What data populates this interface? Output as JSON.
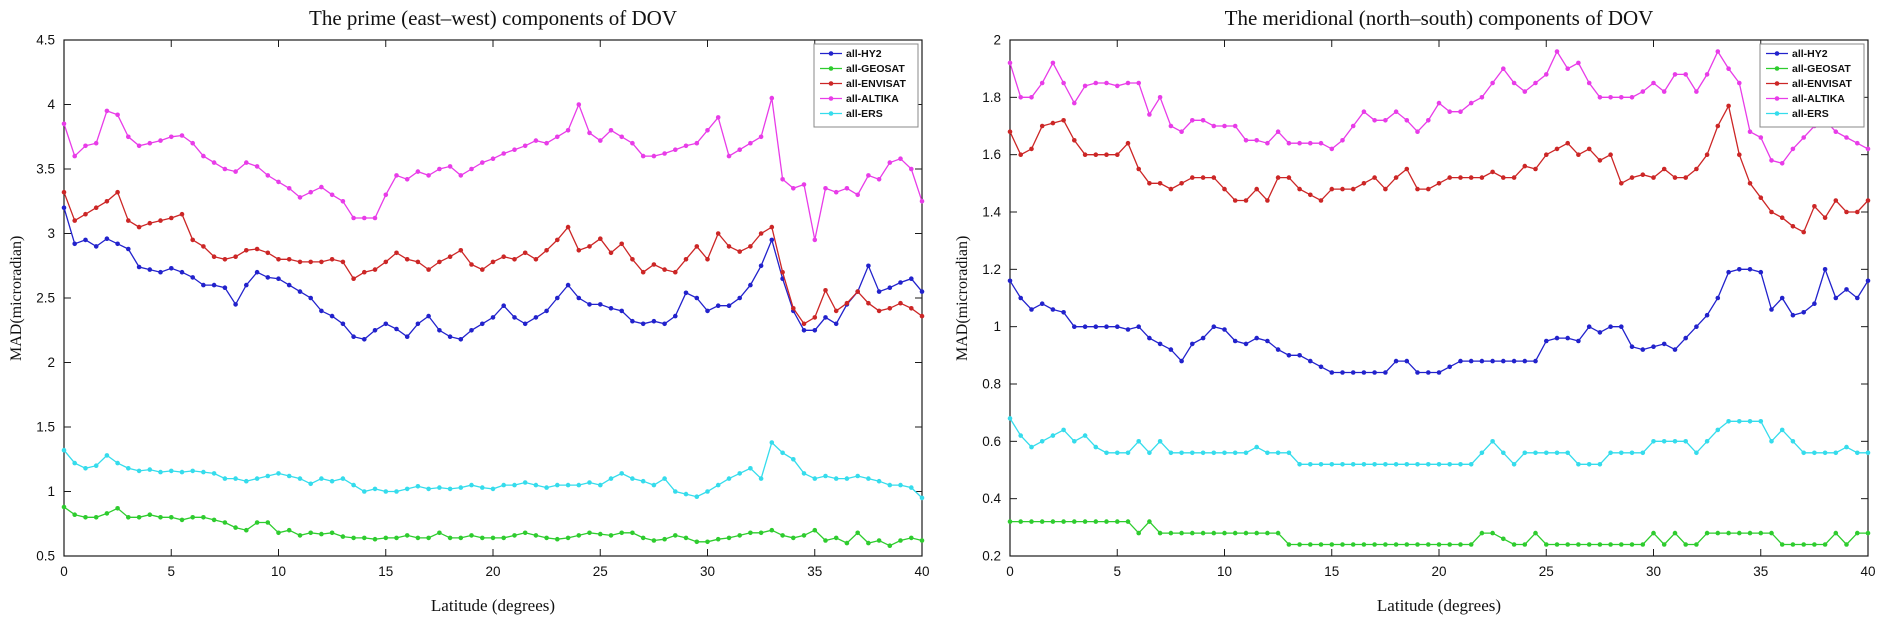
{
  "page": {
    "background": "#ffffff"
  },
  "chart_data": [
    {
      "type": "line",
      "title": "The prime (east–west) components of DOV",
      "xlabel": "Latitude (degrees)",
      "ylabel": "MAD(microradian)",
      "xlim": [
        0,
        40
      ],
      "ylim": [
        0.5,
        4.5
      ],
      "xticks": [
        0,
        5,
        10,
        15,
        20,
        25,
        30,
        35,
        40
      ],
      "yticks": [
        0.5,
        1,
        1.5,
        2,
        2.5,
        3,
        3.5,
        4,
        4.5
      ],
      "x_start": 0,
      "x_step": 0.5,
      "grid": false,
      "legend_position": "top-right",
      "series": [
        {
          "name": "all-HY2",
          "color": "#2222cc",
          "values": [
            3.2,
            2.92,
            2.95,
            2.9,
            2.96,
            2.92,
            2.88,
            2.74,
            2.72,
            2.7,
            2.73,
            2.7,
            2.66,
            2.6,
            2.6,
            2.58,
            2.45,
            2.6,
            2.7,
            2.66,
            2.65,
            2.6,
            2.55,
            2.5,
            2.4,
            2.36,
            2.3,
            2.2,
            2.18,
            2.25,
            2.3,
            2.26,
            2.2,
            2.3,
            2.36,
            2.25,
            2.2,
            2.18,
            2.25,
            2.3,
            2.35,
            2.44,
            2.35,
            2.3,
            2.35,
            2.4,
            2.5,
            2.6,
            2.5,
            2.45,
            2.45,
            2.42,
            2.4,
            2.32,
            2.3,
            2.32,
            2.3,
            2.36,
            2.54,
            2.5,
            2.4,
            2.44,
            2.44,
            2.5,
            2.6,
            2.75,
            2.95,
            2.65,
            2.4,
            2.25,
            2.25,
            2.35,
            2.3,
            2.45,
            2.55,
            2.75,
            2.55,
            2.58,
            2.62,
            2.65,
            2.55
          ]
        },
        {
          "name": "all-GEOSAT",
          "color": "#2ecc2e",
          "values": [
            0.88,
            0.82,
            0.8,
            0.8,
            0.83,
            0.87,
            0.8,
            0.8,
            0.82,
            0.8,
            0.8,
            0.78,
            0.8,
            0.8,
            0.78,
            0.76,
            0.72,
            0.7,
            0.76,
            0.76,
            0.68,
            0.7,
            0.66,
            0.68,
            0.67,
            0.68,
            0.65,
            0.64,
            0.64,
            0.63,
            0.64,
            0.64,
            0.66,
            0.64,
            0.64,
            0.68,
            0.64,
            0.64,
            0.66,
            0.64,
            0.64,
            0.64,
            0.66,
            0.68,
            0.66,
            0.64,
            0.63,
            0.64,
            0.66,
            0.68,
            0.67,
            0.66,
            0.68,
            0.68,
            0.64,
            0.62,
            0.63,
            0.66,
            0.64,
            0.61,
            0.61,
            0.63,
            0.64,
            0.66,
            0.68,
            0.68,
            0.7,
            0.66,
            0.64,
            0.66,
            0.7,
            0.62,
            0.64,
            0.6,
            0.68,
            0.6,
            0.62,
            0.58,
            0.62,
            0.64,
            0.62
          ]
        },
        {
          "name": "all-ENVISAT",
          "color": "#cc2626",
          "values": [
            3.32,
            3.1,
            3.15,
            3.2,
            3.25,
            3.32,
            3.1,
            3.05,
            3.08,
            3.1,
            3.12,
            3.15,
            2.95,
            2.9,
            2.82,
            2.8,
            2.82,
            2.87,
            2.88,
            2.85,
            2.8,
            2.8,
            2.78,
            2.78,
            2.78,
            2.8,
            2.78,
            2.65,
            2.7,
            2.72,
            2.78,
            2.85,
            2.8,
            2.78,
            2.72,
            2.78,
            2.82,
            2.87,
            2.76,
            2.72,
            2.78,
            2.82,
            2.8,
            2.85,
            2.8,
            2.87,
            2.95,
            3.05,
            2.87,
            2.9,
            2.96,
            2.85,
            2.92,
            2.8,
            2.7,
            2.76,
            2.72,
            2.7,
            2.8,
            2.9,
            2.8,
            3.0,
            2.9,
            2.86,
            2.9,
            3.0,
            3.05,
            2.7,
            2.42,
            2.3,
            2.35,
            2.56,
            2.4,
            2.46,
            2.55,
            2.46,
            2.4,
            2.42,
            2.46,
            2.42,
            2.36
          ]
        },
        {
          "name": "all-ALTIKA",
          "color": "#e83ce8",
          "values": [
            3.85,
            3.6,
            3.68,
            3.7,
            3.95,
            3.92,
            3.75,
            3.68,
            3.7,
            3.72,
            3.75,
            3.76,
            3.7,
            3.6,
            3.55,
            3.5,
            3.48,
            3.55,
            3.52,
            3.45,
            3.4,
            3.35,
            3.28,
            3.32,
            3.36,
            3.3,
            3.25,
            3.12,
            3.12,
            3.12,
            3.3,
            3.45,
            3.42,
            3.48,
            3.45,
            3.5,
            3.52,
            3.45,
            3.5,
            3.55,
            3.58,
            3.62,
            3.65,
            3.68,
            3.72,
            3.7,
            3.75,
            3.8,
            4.0,
            3.78,
            3.72,
            3.8,
            3.75,
            3.7,
            3.6,
            3.6,
            3.62,
            3.65,
            3.68,
            3.7,
            3.8,
            3.9,
            3.6,
            3.65,
            3.7,
            3.75,
            4.05,
            3.42,
            3.35,
            3.38,
            2.95,
            3.35,
            3.32,
            3.35,
            3.3,
            3.45,
            3.42,
            3.55,
            3.58,
            3.5,
            3.25
          ]
        },
        {
          "name": "all-ERS",
          "color": "#35dcec",
          "values": [
            1.32,
            1.22,
            1.18,
            1.2,
            1.28,
            1.22,
            1.18,
            1.16,
            1.17,
            1.15,
            1.16,
            1.15,
            1.16,
            1.15,
            1.14,
            1.1,
            1.1,
            1.08,
            1.1,
            1.12,
            1.14,
            1.12,
            1.1,
            1.06,
            1.1,
            1.08,
            1.1,
            1.05,
            1.0,
            1.02,
            1.0,
            1.0,
            1.02,
            1.04,
            1.02,
            1.03,
            1.02,
            1.03,
            1.05,
            1.03,
            1.02,
            1.05,
            1.05,
            1.07,
            1.05,
            1.03,
            1.05,
            1.05,
            1.05,
            1.07,
            1.05,
            1.1,
            1.14,
            1.1,
            1.08,
            1.05,
            1.1,
            1.0,
            0.98,
            0.96,
            1.0,
            1.05,
            1.1,
            1.14,
            1.18,
            1.1,
            1.38,
            1.3,
            1.25,
            1.14,
            1.1,
            1.12,
            1.1,
            1.1,
            1.12,
            1.1,
            1.08,
            1.05,
            1.05,
            1.03,
            0.95
          ]
        }
      ]
    },
    {
      "type": "line",
      "title": "The meridional (north–south) components of DOV",
      "xlabel": "Latitude (degrees)",
      "ylabel": "MAD(microradian)",
      "xlim": [
        0,
        40
      ],
      "ylim": [
        0.2,
        2
      ],
      "xticks": [
        0,
        5,
        10,
        15,
        20,
        25,
        30,
        35,
        40
      ],
      "yticks": [
        0.2,
        0.4,
        0.6,
        0.8,
        1,
        1.2,
        1.4,
        1.6,
        1.8,
        2
      ],
      "x_start": 0,
      "x_step": 0.5,
      "grid": false,
      "legend_position": "top-right",
      "series": [
        {
          "name": "all-HY2",
          "color": "#2222cc",
          "values": [
            1.16,
            1.1,
            1.06,
            1.08,
            1.06,
            1.05,
            1.0,
            1.0,
            1.0,
            1.0,
            1.0,
            0.99,
            1.0,
            0.96,
            0.94,
            0.92,
            0.88,
            0.94,
            0.96,
            1.0,
            0.99,
            0.95,
            0.94,
            0.96,
            0.95,
            0.92,
            0.9,
            0.9,
            0.88,
            0.86,
            0.84,
            0.84,
            0.84,
            0.84,
            0.84,
            0.84,
            0.88,
            0.88,
            0.84,
            0.84,
            0.84,
            0.86,
            0.88,
            0.88,
            0.88,
            0.88,
            0.88,
            0.88,
            0.88,
            0.88,
            0.95,
            0.96,
            0.96,
            0.95,
            1.0,
            0.98,
            1.0,
            1.0,
            0.93,
            0.92,
            0.93,
            0.94,
            0.92,
            0.96,
            1.0,
            1.04,
            1.1,
            1.19,
            1.2,
            1.2,
            1.19,
            1.06,
            1.1,
            1.04,
            1.05,
            1.08,
            1.2,
            1.1,
            1.13,
            1.1,
            1.16
          ]
        },
        {
          "name": "all-GEOSAT",
          "color": "#2ecc2e",
          "values": [
            0.32,
            0.32,
            0.32,
            0.32,
            0.32,
            0.32,
            0.32,
            0.32,
            0.32,
            0.32,
            0.32,
            0.32,
            0.28,
            0.32,
            0.28,
            0.28,
            0.28,
            0.28,
            0.28,
            0.28,
            0.28,
            0.28,
            0.28,
            0.28,
            0.28,
            0.28,
            0.24,
            0.24,
            0.24,
            0.24,
            0.24,
            0.24,
            0.24,
            0.24,
            0.24,
            0.24,
            0.24,
            0.24,
            0.24,
            0.24,
            0.24,
            0.24,
            0.24,
            0.24,
            0.28,
            0.28,
            0.26,
            0.24,
            0.24,
            0.28,
            0.24,
            0.24,
            0.24,
            0.24,
            0.24,
            0.24,
            0.24,
            0.24,
            0.24,
            0.24,
            0.28,
            0.24,
            0.28,
            0.24,
            0.24,
            0.28,
            0.28,
            0.28,
            0.28,
            0.28,
            0.28,
            0.28,
            0.24,
            0.24,
            0.24,
            0.24,
            0.24,
            0.28,
            0.24,
            0.28,
            0.28
          ]
        },
        {
          "name": "all-ENVISAT",
          "color": "#cc2626",
          "values": [
            1.68,
            1.6,
            1.62,
            1.7,
            1.71,
            1.72,
            1.65,
            1.6,
            1.6,
            1.6,
            1.6,
            1.64,
            1.55,
            1.5,
            1.5,
            1.48,
            1.5,
            1.52,
            1.52,
            1.52,
            1.48,
            1.44,
            1.44,
            1.48,
            1.44,
            1.52,
            1.52,
            1.48,
            1.46,
            1.44,
            1.48,
            1.48,
            1.48,
            1.5,
            1.52,
            1.48,
            1.52,
            1.55,
            1.48,
            1.48,
            1.5,
            1.52,
            1.52,
            1.52,
            1.52,
            1.54,
            1.52,
            1.52,
            1.56,
            1.55,
            1.6,
            1.62,
            1.64,
            1.6,
            1.62,
            1.58,
            1.6,
            1.5,
            1.52,
            1.53,
            1.52,
            1.55,
            1.52,
            1.52,
            1.55,
            1.6,
            1.7,
            1.77,
            1.6,
            1.5,
            1.45,
            1.4,
            1.38,
            1.35,
            1.33,
            1.42,
            1.38,
            1.44,
            1.4,
            1.4,
            1.44
          ]
        },
        {
          "name": "all-ALTIKA",
          "color": "#e83ce8",
          "values": [
            1.92,
            1.8,
            1.8,
            1.85,
            1.92,
            1.85,
            1.78,
            1.84,
            1.85,
            1.85,
            1.84,
            1.85,
            1.85,
            1.74,
            1.8,
            1.7,
            1.68,
            1.72,
            1.72,
            1.7,
            1.7,
            1.7,
            1.65,
            1.65,
            1.64,
            1.68,
            1.64,
            1.64,
            1.64,
            1.64,
            1.62,
            1.65,
            1.7,
            1.75,
            1.72,
            1.72,
            1.75,
            1.72,
            1.68,
            1.72,
            1.78,
            1.75,
            1.75,
            1.78,
            1.8,
            1.85,
            1.9,
            1.85,
            1.82,
            1.85,
            1.88,
            1.96,
            1.9,
            1.92,
            1.85,
            1.8,
            1.8,
            1.8,
            1.8,
            1.82,
            1.85,
            1.82,
            1.88,
            1.88,
            1.82,
            1.88,
            1.96,
            1.9,
            1.85,
            1.68,
            1.66,
            1.58,
            1.57,
            1.62,
            1.66,
            1.7,
            1.72,
            1.68,
            1.66,
            1.64,
            1.62
          ]
        },
        {
          "name": "all-ERS",
          "color": "#35dcec",
          "values": [
            0.68,
            0.62,
            0.58,
            0.6,
            0.62,
            0.64,
            0.6,
            0.62,
            0.58,
            0.56,
            0.56,
            0.56,
            0.6,
            0.56,
            0.6,
            0.56,
            0.56,
            0.56,
            0.56,
            0.56,
            0.56,
            0.56,
            0.56,
            0.58,
            0.56,
            0.56,
            0.56,
            0.52,
            0.52,
            0.52,
            0.52,
            0.52,
            0.52,
            0.52,
            0.52,
            0.52,
            0.52,
            0.52,
            0.52,
            0.52,
            0.52,
            0.52,
            0.52,
            0.52,
            0.56,
            0.6,
            0.56,
            0.52,
            0.56,
            0.56,
            0.56,
            0.56,
            0.56,
            0.52,
            0.52,
            0.52,
            0.56,
            0.56,
            0.56,
            0.56,
            0.6,
            0.6,
            0.6,
            0.6,
            0.56,
            0.6,
            0.64,
            0.67,
            0.67,
            0.67,
            0.67,
            0.6,
            0.64,
            0.6,
            0.56,
            0.56,
            0.56,
            0.56,
            0.58,
            0.56,
            0.56
          ]
        }
      ]
    }
  ]
}
